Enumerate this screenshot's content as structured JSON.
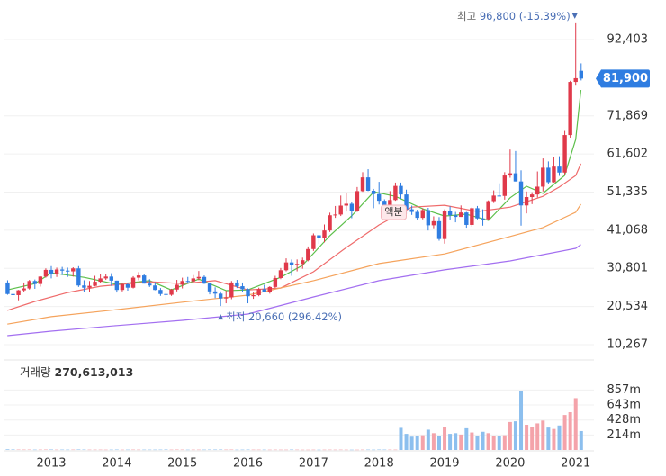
{
  "chart_data": {
    "type": "candlestick",
    "categories": [
      null,
      null,
      null,
      null,
      null,
      null,
      null,
      null,
      "2013",
      null,
      null,
      null,
      null,
      null,
      null,
      null,
      null,
      null,
      null,
      null,
      "2014",
      null,
      null,
      null,
      null,
      null,
      null,
      null,
      null,
      null,
      null,
      null,
      "2015",
      null,
      null,
      null,
      null,
      null,
      null,
      null,
      null,
      null,
      null,
      null,
      "2016",
      null,
      null,
      null,
      null,
      null,
      null,
      null,
      null,
      null,
      null,
      null,
      "2017",
      null,
      null,
      null,
      null,
      null,
      null,
      null,
      null,
      null,
      null,
      null,
      "2018",
      null,
      null,
      null,
      null,
      null,
      null,
      null,
      null,
      null,
      null,
      null,
      "2019",
      null,
      null,
      null,
      null,
      null,
      null,
      null,
      null,
      null,
      null,
      null,
      "2020",
      null,
      null,
      null,
      null,
      null,
      null,
      null,
      null,
      null,
      null,
      null,
      "2021",
      null
    ],
    "ohlc": [
      [
        27000,
        27600,
        23700,
        23900
      ],
      [
        23900,
        25700,
        22800,
        23600
      ],
      [
        23600,
        25000,
        22200,
        24900
      ],
      [
        24900,
        27000,
        24400,
        25400
      ],
      [
        25400,
        27700,
        25100,
        27400
      ],
      [
        27400,
        27800,
        25300,
        26600
      ],
      [
        26600,
        28700,
        25900,
        28600
      ],
      [
        28600,
        30800,
        28300,
        30400
      ],
      [
        30400,
        31400,
        28100,
        29300
      ],
      [
        29300,
        31000,
        28500,
        30500
      ],
      [
        30500,
        31200,
        29000,
        30200
      ],
      [
        30200,
        31000,
        28500,
        30000
      ],
      [
        30000,
        31100,
        28600,
        30800
      ],
      [
        30800,
        31400,
        25800,
        26200
      ],
      [
        26200,
        27600,
        24500,
        25600
      ],
      [
        25600,
        27400,
        24400,
        26100
      ],
      [
        26100,
        28800,
        26000,
        27200
      ],
      [
        27200,
        29200,
        26800,
        28100
      ],
      [
        28100,
        29200,
        27700,
        28600
      ],
      [
        28600,
        29500,
        26100,
        27500
      ],
      [
        27500,
        27500,
        24300,
        25000
      ],
      [
        25000,
        26800,
        24600,
        26500
      ],
      [
        26500,
        27000,
        24800,
        25600
      ],
      [
        25600,
        28700,
        25400,
        28300
      ],
      [
        28300,
        29800,
        27600,
        28900
      ],
      [
        28900,
        29400,
        26700,
        26700
      ],
      [
        26700,
        27900,
        25800,
        26200
      ],
      [
        26200,
        27100,
        24900,
        25000
      ],
      [
        25000,
        25500,
        23400,
        23900
      ],
      [
        23900,
        24500,
        21660,
        23700
      ],
      [
        23700,
        25300,
        23400,
        25100
      ],
      [
        25100,
        27700,
        24600,
        26400
      ],
      [
        26400,
        28300,
        25400,
        27400
      ],
      [
        27400,
        28500,
        26800,
        27300
      ],
      [
        27300,
        29000,
        26800,
        28100
      ],
      [
        28100,
        30100,
        27600,
        28500
      ],
      [
        28500,
        28900,
        26600,
        26700
      ],
      [
        26700,
        27000,
        23800,
        24600
      ],
      [
        24600,
        25700,
        22800,
        24000
      ],
      [
        24000,
        24600,
        20660,
        22700
      ],
      [
        22700,
        24800,
        21400,
        23000
      ],
      [
        23000,
        27400,
        22500,
        27000
      ],
      [
        27000,
        27700,
        25500,
        26000
      ],
      [
        26000,
        27000,
        24400,
        25200
      ],
      [
        25200,
        25400,
        21400,
        23300
      ],
      [
        23300,
        24300,
        22600,
        23600
      ],
      [
        23600,
        25600,
        23300,
        25200
      ],
      [
        25200,
        26400,
        24500,
        24500
      ],
      [
        24500,
        26000,
        24000,
        25800
      ],
      [
        25800,
        28800,
        25500,
        28200
      ],
      [
        28200,
        30900,
        27900,
        30300
      ],
      [
        30300,
        33500,
        30000,
        32400
      ],
      [
        32400,
        33200,
        28800,
        31800
      ],
      [
        31800,
        33200,
        30000,
        32000
      ],
      [
        32000,
        33700,
        30700,
        33000
      ],
      [
        33000,
        36700,
        32700,
        36000
      ],
      [
        36000,
        40200,
        35500,
        39700
      ],
      [
        39700,
        39800,
        37400,
        38900
      ],
      [
        38900,
        42600,
        37800,
        41000
      ],
      [
        41000,
        45800,
        40600,
        45100
      ],
      [
        45100,
        47600,
        44400,
        45300
      ],
      [
        45300,
        50400,
        44900,
        47700
      ],
      [
        47700,
        51000,
        46100,
        48200
      ],
      [
        48200,
        48700,
        44300,
        46300
      ],
      [
        46300,
        52700,
        46000,
        51600
      ],
      [
        51600,
        56700,
        51400,
        55300
      ],
      [
        55300,
        57500,
        51600,
        51700
      ],
      [
        51700,
        52200,
        47000,
        50800
      ],
      [
        50800,
        54100,
        48000,
        49000
      ],
      [
        49000,
        49400,
        44300,
        47100
      ],
      [
        47100,
        51600,
        45900,
        49200
      ],
      [
        49200,
        53900,
        49000,
        53000
      ],
      [
        53000,
        53900,
        49500,
        50700
      ],
      [
        50700,
        52000,
        45400,
        46700
      ],
      [
        46700,
        47700,
        45200,
        46000
      ],
      [
        46000,
        46600,
        43800,
        44400
      ],
      [
        44400,
        47000,
        44000,
        46500
      ],
      [
        46500,
        47100,
        41000,
        42400
      ],
      [
        42400,
        44800,
        41600,
        43500
      ],
      [
        43500,
        44600,
        38250,
        38700
      ],
      [
        38700,
        46700,
        37450,
        46150
      ],
      [
        46150,
        47500,
        43950,
        45100
      ],
      [
        45100,
        46000,
        43200,
        44650
      ],
      [
        44650,
        47750,
        44650,
        45850
      ],
      [
        45850,
        46000,
        41750,
        42500
      ],
      [
        42500,
        47300,
        42000,
        47000
      ],
      [
        47000,
        47600,
        44000,
        44250
      ],
      [
        44250,
        46700,
        42300,
        44000
      ],
      [
        44000,
        49100,
        43800,
        48900
      ],
      [
        48900,
        51800,
        48400,
        50400
      ],
      [
        50400,
        53700,
        50300,
        50300
      ],
      [
        50300,
        56700,
        49300,
        55800
      ],
      [
        55800,
        62800,
        55200,
        56400
      ],
      [
        56400,
        62400,
        54200,
        54200
      ],
      [
        54200,
        57200,
        42300,
        47750
      ],
      [
        47750,
        51500,
        45600,
        50000
      ],
      [
        50000,
        51300,
        48100,
        50700
      ],
      [
        50700,
        56900,
        49900,
        52800
      ],
      [
        52800,
        60400,
        51500,
        57900
      ],
      [
        57900,
        59600,
        53600,
        54000
      ],
      [
        54000,
        60700,
        53900,
        58200
      ],
      [
        58200,
        61000,
        55700,
        56600
      ],
      [
        56600,
        67800,
        56100,
        66700
      ],
      [
        66700,
        81300,
        66000,
        81000
      ],
      [
        81000,
        96800,
        80000,
        82000
      ],
      [
        84000,
        86000,
        81400,
        81900
      ]
    ],
    "up_color": "#e0394a",
    "down_color": "#2f7de1",
    "ylim": [
      6632,
      101853
    ],
    "yticks": [
      {
        "value": 10267,
        "label": "10,267"
      },
      {
        "value": 20534,
        "label": "20,534"
      },
      {
        "value": 30801,
        "label": "30,801"
      },
      {
        "value": 41068,
        "label": "41,068"
      },
      {
        "value": 51335,
        "label": "51,335"
      },
      {
        "value": 61602,
        "label": "61,602"
      },
      {
        "value": 71869,
        "label": "71,869"
      },
      {
        "value": 92403,
        "label": "92,403"
      }
    ],
    "grid": true,
    "current_label": "81,900",
    "current_color": "#2f7de1",
    "high_label": "최고",
    "high_text": "96,800 (-15.39%)",
    "low_label": "최저",
    "low_text": "20,660 (296.42%)",
    "split_label": "액분",
    "moving_averages": [
      {
        "color": "#5cbf4a",
        "x": [
          2012.33,
          2012.75,
          2013.0,
          2013.5,
          2014.0,
          2014.5,
          2014.83,
          2015.25,
          2015.67,
          2016.0,
          2016.5,
          2016.83,
          2017.25,
          2017.58,
          2017.92,
          2018.25,
          2018.67,
          2019.0,
          2019.33,
          2019.67,
          2020.0,
          2020.25,
          2020.5,
          2020.83,
          2021.0,
          2021.08
        ],
        "values": [
          25000,
          26700,
          29600,
          28400,
          26500,
          27500,
          25000,
          27900,
          24800,
          25000,
          28400,
          31600,
          39600,
          44900,
          51400,
          50200,
          46800,
          44900,
          45400,
          43700,
          49800,
          52900,
          51000,
          55800,
          65500,
          78800
        ]
      },
      {
        "color": "#ef6b6b",
        "x": [
          2012.33,
          2012.75,
          2013.25,
          2013.75,
          2014.5,
          2015.0,
          2015.5,
          2016.0,
          2016.5,
          2017.0,
          2017.5,
          2018.0,
          2018.5,
          2019.0,
          2019.5,
          2020.0,
          2020.5,
          2020.75,
          2021.0,
          2021.08
        ],
        "values": [
          19500,
          21900,
          24300,
          26000,
          27200,
          26700,
          27500,
          25000,
          25500,
          29900,
          36400,
          42500,
          47300,
          47800,
          46100,
          47300,
          50200,
          52700,
          55800,
          59000
        ]
      },
      {
        "color": "#f5a35c",
        "x": [
          2012.33,
          2013.0,
          2014.0,
          2015.0,
          2016.0,
          2017.0,
          2018.0,
          2019.0,
          2020.0,
          2020.5,
          2021.0,
          2021.08
        ],
        "values": [
          15800,
          17800,
          19700,
          21700,
          23600,
          27500,
          32100,
          34700,
          39400,
          41800,
          45900,
          48100
        ]
      },
      {
        "color": "#a36ff0",
        "x": [
          2012.33,
          2013.0,
          2014.0,
          2015.0,
          2016.0,
          2017.0,
          2018.0,
          2019.0,
          2020.0,
          2021.0,
          2021.08
        ],
        "values": [
          12700,
          13900,
          15400,
          16800,
          18500,
          23100,
          27500,
          30400,
          32800,
          36200,
          37200
        ]
      }
    ],
    "volume": {
      "label": "거래량",
      "last_label": "270,613,013",
      "up_color": "#f4a3aa",
      "down_color": "#8cbfee",
      "ylim": [
        0,
        1260000000
      ],
      "yticks": [
        {
          "value": 857000000,
          "label": "857m"
        },
        {
          "value": 643000000,
          "label": "643m"
        },
        {
          "value": 428000000,
          "label": "428m"
        },
        {
          "value": 214000000,
          "label": "214m"
        }
      ],
      "values": [
        9000000,
        7000000,
        6000000,
        5500000,
        6000000,
        5000000,
        5500000,
        6000000,
        6500000,
        5000000,
        5500000,
        5000000,
        5500000,
        7000000,
        6000000,
        5000000,
        5000000,
        5000000,
        4500000,
        5000000,
        6000000,
        4500000,
        5000000,
        5500000,
        5000000,
        5000000,
        5000000,
        5000000,
        5500000,
        6500000,
        5000000,
        6000000,
        5500000,
        4500000,
        5000000,
        5000000,
        5000000,
        6000000,
        6000000,
        6500000,
        5500000,
        6000000,
        4500000,
        5000000,
        6000000,
        5000000,
        5000000,
        5000000,
        4500000,
        5000000,
        4500000,
        4500000,
        6000000,
        5000000,
        4000000,
        4000000,
        4500000,
        4000000,
        4500000,
        5000000,
        4500000,
        5000000,
        4500000,
        4000000,
        4000000,
        5000000,
        5500000,
        4500000,
        6000000,
        5500000,
        5500000,
        5000000,
        316000000,
        230000000,
        190000000,
        200000000,
        210000000,
        290000000,
        240000000,
        200000000,
        330000000,
        230000000,
        240000000,
        220000000,
        310000000,
        250000000,
        200000000,
        260000000,
        240000000,
        200000000,
        200000000,
        210000000,
        400000000,
        410000000,
        840000000,
        360000000,
        330000000,
        380000000,
        420000000,
        320000000,
        300000000,
        350000000,
        500000000,
        540000000,
        740000000,
        270613013
      ]
    }
  }
}
